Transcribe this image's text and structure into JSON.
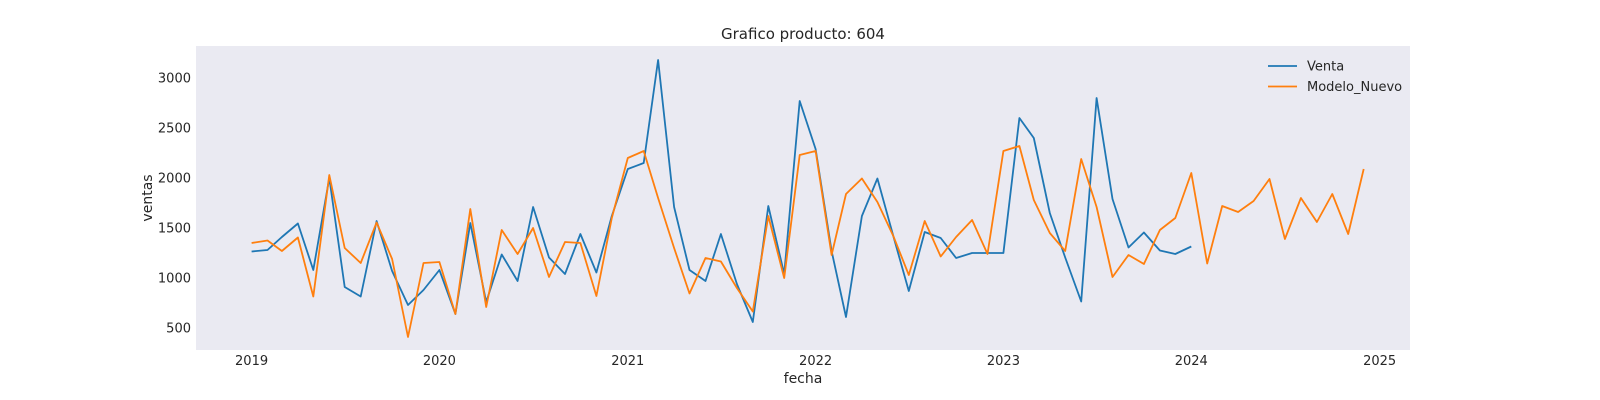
{
  "chart_data": {
    "type": "line",
    "title": "Grafico producto: 604",
    "xlabel": "fecha",
    "ylabel": "ventas",
    "xlim": [
      "2018-09-15",
      "2025-03-01"
    ],
    "ylim": [
      280,
      3320
    ],
    "x_ticks": [
      "2019",
      "2020",
      "2021",
      "2022",
      "2023",
      "2024",
      "2025"
    ],
    "y_ticks": [
      500,
      1000,
      1500,
      2000,
      2500,
      3000
    ],
    "grid": false,
    "legend_position": "top-right",
    "series": [
      {
        "name": "Venta",
        "color": "#1f77b4",
        "start": "2019-01",
        "values": [
          1265,
          1280,
          1410,
          1545,
          1080,
          2000,
          910,
          815,
          1570,
          1070,
          730,
          880,
          1080,
          640,
          1550,
          760,
          1235,
          970,
          1710,
          1205,
          1040,
          1440,
          1055,
          1620,
          2090,
          2150,
          3180,
          1710,
          1080,
          970,
          1440,
          940,
          560,
          1720,
          1040,
          2770,
          2290,
          1270,
          610,
          1620,
          1995,
          1420,
          870,
          1460,
          1400,
          1200,
          1250,
          1250,
          1250,
          2600,
          2400,
          1650,
          1205,
          765,
          2800,
          1790,
          1305,
          1455,
          1275,
          1240,
          1315
        ]
      },
      {
        "name": "Modelo_Nuevo",
        "color": "#ff7f0e",
        "start": "2019-01",
        "values": [
          1350,
          1375,
          1270,
          1405,
          815,
          2030,
          1300,
          1150,
          1555,
          1190,
          410,
          1150,
          1160,
          640,
          1690,
          710,
          1480,
          1240,
          1500,
          1010,
          1360,
          1350,
          820,
          1600,
          2200,
          2270,
          1800,
          1300,
          845,
          1200,
          1165,
          900,
          665,
          1620,
          1000,
          2230,
          2270,
          1230,
          1840,
          1995,
          1760,
          1420,
          1030,
          1570,
          1215,
          1410,
          1580,
          1240,
          2270,
          2320,
          1780,
          1450,
          1270,
          2190,
          1710,
          1010,
          1230,
          1140,
          1480,
          1600,
          2050,
          1145,
          1720,
          1660,
          1770,
          1990,
          1390,
          1800,
          1560,
          1840,
          1440,
          2090
        ]
      }
    ]
  }
}
